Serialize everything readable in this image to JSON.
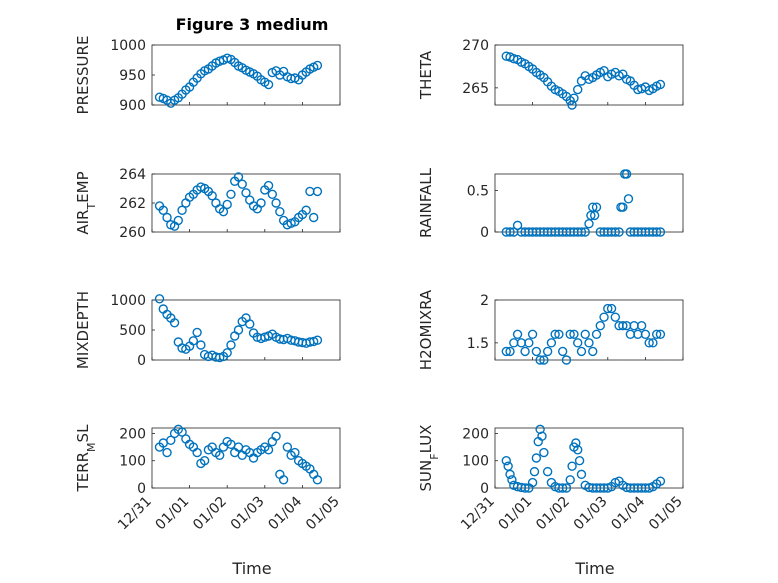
{
  "figure": {
    "title": "Figure 3 medium",
    "marker_color": "#0072BD",
    "x_tick_labels": [
      "12/31",
      "01/01",
      "01/02",
      "01/03",
      "01/04",
      "01/05"
    ],
    "x_axis_label": "Time"
  },
  "chart_data": [
    {
      "type": "scatter",
      "panel": "pressure",
      "title": "Figure 3 medium",
      "ylabel": "PRESSURE",
      "ylim": [
        900,
        1000
      ],
      "yticks": [
        900,
        950,
        1000
      ],
      "xlim_days": [
        0,
        5
      ],
      "grid": true,
      "x": [
        0.2,
        0.3,
        0.4,
        0.5,
        0.6,
        0.7,
        0.8,
        0.9,
        1.0,
        1.1,
        1.2,
        1.3,
        1.4,
        1.5,
        1.6,
        1.7,
        1.8,
        1.9,
        2.0,
        2.1,
        2.2,
        2.3,
        2.4,
        2.5,
        2.6,
        2.7,
        2.8,
        2.9,
        3.0,
        3.1,
        3.2,
        3.3,
        3.4,
        3.5,
        3.6,
        3.7,
        3.8,
        3.9,
        4.0,
        4.1,
        4.2,
        4.3,
        4.4
      ],
      "y": [
        913,
        911,
        908,
        903,
        908,
        912,
        918,
        925,
        930,
        938,
        945,
        952,
        957,
        960,
        965,
        970,
        973,
        975,
        978,
        976,
        971,
        965,
        962,
        958,
        955,
        952,
        948,
        942,
        938,
        934,
        954,
        957,
        950,
        956,
        947,
        944,
        945,
        942,
        950,
        955,
        960,
        963,
        966
      ]
    },
    {
      "type": "scatter",
      "panel": "theta",
      "ylabel": "THETA",
      "ylim": [
        263,
        270
      ],
      "yticks": [
        265,
        270
      ],
      "xlim_days": [
        0,
        5
      ],
      "grid": true,
      "x": [
        0.3,
        0.4,
        0.5,
        0.6,
        0.7,
        0.8,
        0.9,
        1.0,
        1.1,
        1.2,
        1.3,
        1.4,
        1.5,
        1.6,
        1.7,
        1.8,
        1.9,
        2.0,
        2.05,
        2.1,
        2.2,
        2.3,
        2.4,
        2.5,
        2.6,
        2.7,
        2.8,
        2.9,
        3.0,
        3.1,
        3.2,
        3.3,
        3.4,
        3.5,
        3.6,
        3.7,
        3.8,
        3.9,
        4.0,
        4.1,
        4.2,
        4.3,
        4.4
      ],
      "y": [
        268.7,
        268.6,
        268.4,
        268.3,
        268.0,
        267.8,
        267.5,
        267.2,
        266.8,
        266.5,
        266.2,
        265.7,
        265.2,
        264.8,
        264.6,
        264.3,
        264.0,
        263.5,
        263.0,
        263.8,
        264.8,
        265.8,
        266.4,
        266.0,
        266.2,
        266.5,
        266.8,
        267.0,
        266.3,
        266.6,
        266.8,
        266.4,
        266.6,
        266.0,
        265.8,
        265.3,
        264.8,
        264.9,
        265.1,
        264.7,
        264.9,
        265.2,
        265.4
      ]
    },
    {
      "type": "scatter",
      "panel": "air-temp",
      "ylabel": "AIR",
      "ylabel_sub": "T",
      "ylabel_tail": "EMP",
      "ylim": [
        260,
        264
      ],
      "yticks": [
        260,
        262,
        264
      ],
      "xlim_days": [
        0,
        5
      ],
      "grid": true,
      "x": [
        0.2,
        0.3,
        0.4,
        0.5,
        0.6,
        0.7,
        0.8,
        0.9,
        1.0,
        1.1,
        1.2,
        1.3,
        1.4,
        1.5,
        1.6,
        1.7,
        1.8,
        1.9,
        2.0,
        2.1,
        2.2,
        2.3,
        2.4,
        2.5,
        2.6,
        2.7,
        2.8,
        2.9,
        3.0,
        3.1,
        3.2,
        3.3,
        3.4,
        3.5,
        3.6,
        3.7,
        3.8,
        3.9,
        4.0,
        4.1,
        4.2,
        4.3,
        4.4
      ],
      "y": [
        261.8,
        261.5,
        261.0,
        260.5,
        260.4,
        260.8,
        261.5,
        262.0,
        262.4,
        262.6,
        262.9,
        263.1,
        263.0,
        262.8,
        262.5,
        262.0,
        261.6,
        261.4,
        261.9,
        262.6,
        263.5,
        263.8,
        263.3,
        262.7,
        262.2,
        261.8,
        261.6,
        262.0,
        262.9,
        263.2,
        262.6,
        262.0,
        261.4,
        260.8,
        260.5,
        260.6,
        260.7,
        261.0,
        261.2,
        261.5,
        262.8,
        261.0,
        262.8
      ]
    },
    {
      "type": "scatter",
      "panel": "rainfall",
      "ylabel": "RAINFALL",
      "ylim": [
        0,
        0.7
      ],
      "yticks": [
        0,
        0.5
      ],
      "xlim_days": [
        0,
        5
      ],
      "grid": true,
      "x": [
        0.3,
        0.4,
        0.5,
        0.6,
        0.7,
        0.8,
        0.9,
        1.0,
        1.1,
        1.2,
        1.3,
        1.4,
        1.5,
        1.6,
        1.7,
        1.8,
        1.9,
        2.0,
        2.1,
        2.2,
        2.3,
        2.4,
        2.5,
        2.55,
        2.6,
        2.65,
        2.7,
        2.8,
        2.9,
        3.0,
        3.1,
        3.2,
        3.3,
        3.35,
        3.4,
        3.45,
        3.5,
        3.55,
        3.6,
        3.7,
        3.8,
        3.9,
        4.0,
        4.1,
        4.2,
        4.3,
        4.4
      ],
      "y": [
        0,
        0,
        0,
        0.08,
        0,
        0,
        0,
        0,
        0,
        0,
        0,
        0,
        0,
        0,
        0,
        0,
        0,
        0,
        0,
        0,
        0,
        0,
        0.1,
        0.2,
        0.3,
        0.2,
        0.3,
        0,
        0,
        0,
        0,
        0,
        0,
        0.3,
        0.3,
        0.7,
        0.7,
        0.4,
        0,
        0,
        0,
        0,
        0,
        0,
        0,
        0,
        0
      ]
    },
    {
      "type": "scatter",
      "panel": "mixdepth",
      "ylabel": "MIXDEPTH",
      "ylim": [
        0,
        1000
      ],
      "yticks": [
        0,
        500,
        1000
      ],
      "xlim_days": [
        0,
        5
      ],
      "grid": true,
      "x": [
        0.2,
        0.3,
        0.4,
        0.5,
        0.6,
        0.7,
        0.8,
        0.9,
        1.0,
        1.1,
        1.2,
        1.3,
        1.4,
        1.5,
        1.6,
        1.7,
        1.8,
        1.9,
        2.0,
        2.1,
        2.2,
        2.3,
        2.4,
        2.5,
        2.6,
        2.7,
        2.8,
        2.9,
        3.0,
        3.1,
        3.2,
        3.3,
        3.4,
        3.5,
        3.6,
        3.7,
        3.8,
        3.9,
        4.0,
        4.1,
        4.2,
        4.3,
        4.4
      ],
      "y": [
        1020,
        850,
        760,
        700,
        620,
        300,
        200,
        180,
        230,
        320,
        460,
        250,
        90,
        60,
        80,
        50,
        40,
        60,
        120,
        250,
        400,
        500,
        640,
        700,
        600,
        450,
        380,
        360,
        380,
        400,
        430,
        380,
        350,
        340,
        360,
        330,
        320,
        300,
        290,
        280,
        300,
        310,
        330
      ]
    },
    {
      "type": "scatter",
      "panel": "h2o-mixratio",
      "ylabel": "H2OMIXRA",
      "ylim": [
        1.3,
        2
      ],
      "yticks": [
        1.5,
        2
      ],
      "xlim_days": [
        0,
        5
      ],
      "grid": true,
      "x": [
        0.3,
        0.4,
        0.5,
        0.6,
        0.7,
        0.8,
        0.9,
        1.0,
        1.1,
        1.2,
        1.3,
        1.4,
        1.5,
        1.6,
        1.7,
        1.8,
        1.9,
        2.0,
        2.1,
        2.2,
        2.3,
        2.4,
        2.5,
        2.6,
        2.7,
        2.8,
        2.9,
        3.0,
        3.1,
        3.2,
        3.3,
        3.4,
        3.5,
        3.6,
        3.7,
        3.8,
        3.9,
        4.0,
        4.1,
        4.2,
        4.3,
        4.4
      ],
      "y": [
        1.4,
        1.4,
        1.5,
        1.6,
        1.5,
        1.4,
        1.5,
        1.6,
        1.4,
        1.3,
        1.3,
        1.4,
        1.5,
        1.6,
        1.6,
        1.4,
        1.3,
        1.6,
        1.6,
        1.5,
        1.4,
        1.6,
        1.5,
        1.4,
        1.6,
        1.7,
        1.8,
        1.9,
        1.9,
        1.8,
        1.7,
        1.7,
        1.7,
        1.6,
        1.7,
        1.6,
        1.7,
        1.6,
        1.5,
        1.5,
        1.6,
        1.6
      ]
    },
    {
      "type": "scatter",
      "panel": "terrain-msl",
      "ylabel": "TERR",
      "ylabel_sub": "M",
      "ylabel_tail": "SL",
      "ylim": [
        0,
        220
      ],
      "yticks": [
        0,
        100,
        200
      ],
      "xlim_days": [
        0,
        5
      ],
      "grid": true,
      "x": [
        0.2,
        0.3,
        0.4,
        0.5,
        0.6,
        0.7,
        0.8,
        0.9,
        1.0,
        1.1,
        1.2,
        1.3,
        1.4,
        1.5,
        1.6,
        1.7,
        1.8,
        1.9,
        2.0,
        2.1,
        2.2,
        2.3,
        2.4,
        2.5,
        2.6,
        2.7,
        2.8,
        2.9,
        3.0,
        3.1,
        3.2,
        3.3,
        3.4,
        3.5,
        3.6,
        3.7,
        3.8,
        3.9,
        4.0,
        4.1,
        4.2,
        4.3,
        4.4
      ],
      "y": [
        150,
        165,
        130,
        175,
        200,
        215,
        205,
        180,
        160,
        150,
        130,
        90,
        100,
        140,
        150,
        130,
        120,
        150,
        170,
        160,
        130,
        150,
        120,
        140,
        130,
        110,
        130,
        140,
        150,
        140,
        170,
        190,
        50,
        30,
        150,
        120,
        130,
        100,
        90,
        80,
        70,
        50,
        30
      ]
    },
    {
      "type": "scatter",
      "panel": "sun-flux",
      "ylabel": "SUN",
      "ylabel_sub": "F",
      "ylabel_tail": "LUX",
      "ylim": [
        0,
        220
      ],
      "yticks": [
        0,
        100,
        200
      ],
      "xlim_days": [
        0,
        5
      ],
      "grid": true,
      "x": [
        0.3,
        0.35,
        0.4,
        0.45,
        0.5,
        0.6,
        0.7,
        0.8,
        0.9,
        1.0,
        1.05,
        1.1,
        1.15,
        1.2,
        1.25,
        1.3,
        1.4,
        1.5,
        1.6,
        1.7,
        1.8,
        1.9,
        2.0,
        2.05,
        2.1,
        2.15,
        2.2,
        2.25,
        2.3,
        2.4,
        2.5,
        2.6,
        2.7,
        2.8,
        2.9,
        3.0,
        3.1,
        3.2,
        3.3,
        3.4,
        3.5,
        3.6,
        3.7,
        3.8,
        3.9,
        4.0,
        4.1,
        4.2,
        4.3,
        4.4
      ],
      "y": [
        100,
        80,
        50,
        30,
        10,
        5,
        2,
        0,
        0,
        20,
        60,
        110,
        170,
        215,
        190,
        130,
        60,
        20,
        5,
        0,
        0,
        0,
        30,
        80,
        150,
        165,
        140,
        100,
        50,
        10,
        2,
        0,
        0,
        0,
        0,
        0,
        5,
        20,
        25,
        10,
        2,
        0,
        0,
        0,
        0,
        0,
        0,
        5,
        15,
        25
      ]
    }
  ]
}
